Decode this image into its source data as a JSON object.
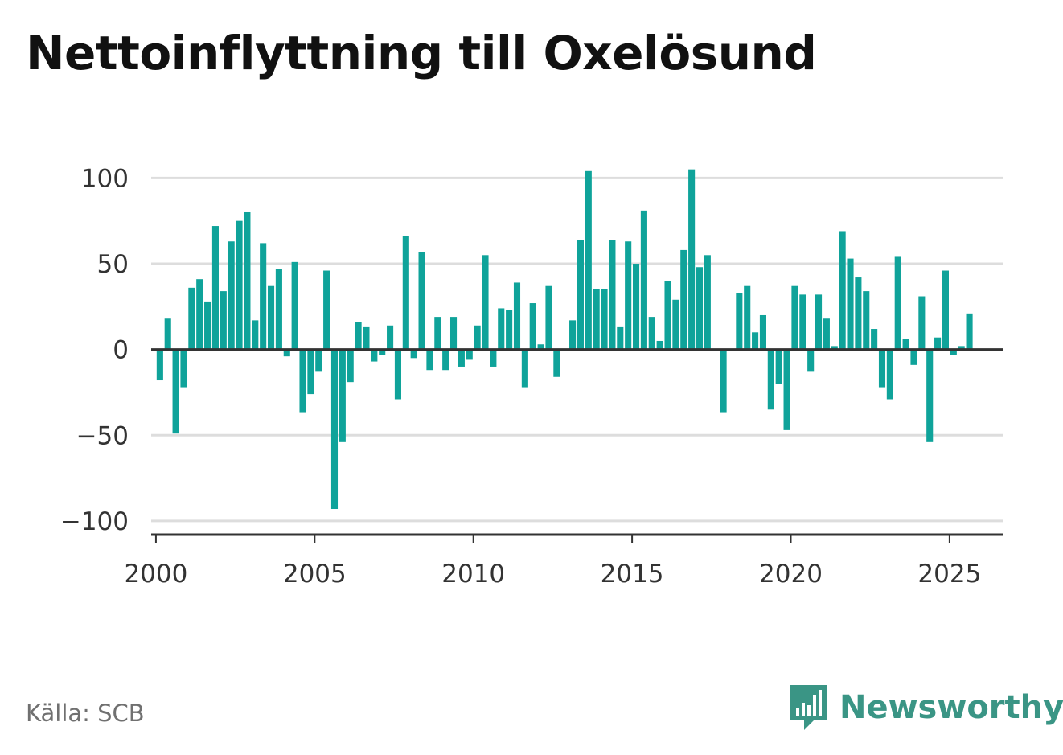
{
  "title": "Nettoinflyttning till Oxelösund",
  "source": "Källa: SCB",
  "brand": {
    "name": "Newsworthy",
    "icon": "newsworthy-logo-icon",
    "color": "#3a9585"
  },
  "colors": {
    "bar": "#0fa39a",
    "grid": "#dddddd",
    "zero_line": "#333333"
  },
  "chart_data": {
    "type": "bar",
    "title": "Nettoinflyttning till Oxelösund",
    "xlabel": "",
    "ylabel": "",
    "ylim": [
      -108,
      110
    ],
    "yticks": [
      100,
      50,
      0,
      -50,
      -100
    ],
    "ytick_labels": [
      "100",
      "50",
      "0",
      "−50",
      "−100"
    ],
    "xlim": [
      1999.85,
      2026.7
    ],
    "xticks": [
      2000,
      2005,
      2010,
      2015,
      2020,
      2025
    ],
    "xtick_labels": [
      "2000",
      "2005",
      "2010",
      "2015",
      "2020",
      "2025"
    ],
    "grid": true,
    "frequency": "quarterly",
    "start": "2000 Q1",
    "values": [
      -18,
      18,
      -49,
      -22,
      36,
      41,
      28,
      72,
      34,
      63,
      75,
      80,
      17,
      62,
      37,
      47,
      -4,
      51,
      -37,
      -26,
      -13,
      46,
      -93,
      -54,
      -19,
      16,
      13,
      -7,
      -3,
      14,
      -29,
      66,
      -5,
      57,
      -12,
      19,
      -12,
      19,
      -10,
      -6,
      14,
      55,
      -10,
      24,
      23,
      39,
      -22,
      27,
      3,
      37,
      -16,
      -1,
      17,
      64,
      104,
      35,
      35,
      64,
      13,
      63,
      50,
      81,
      19,
      5,
      40,
      29,
      58,
      105,
      48,
      55,
      0,
      -37,
      0,
      33,
      37,
      10,
      20,
      -35,
      -20,
      -47,
      37,
      32,
      -13,
      32,
      18,
      2,
      69,
      53,
      42,
      34,
      12,
      -22,
      -29,
      54,
      6,
      -9,
      31,
      -54,
      7,
      46,
      -3,
      2,
      21
    ]
  }
}
